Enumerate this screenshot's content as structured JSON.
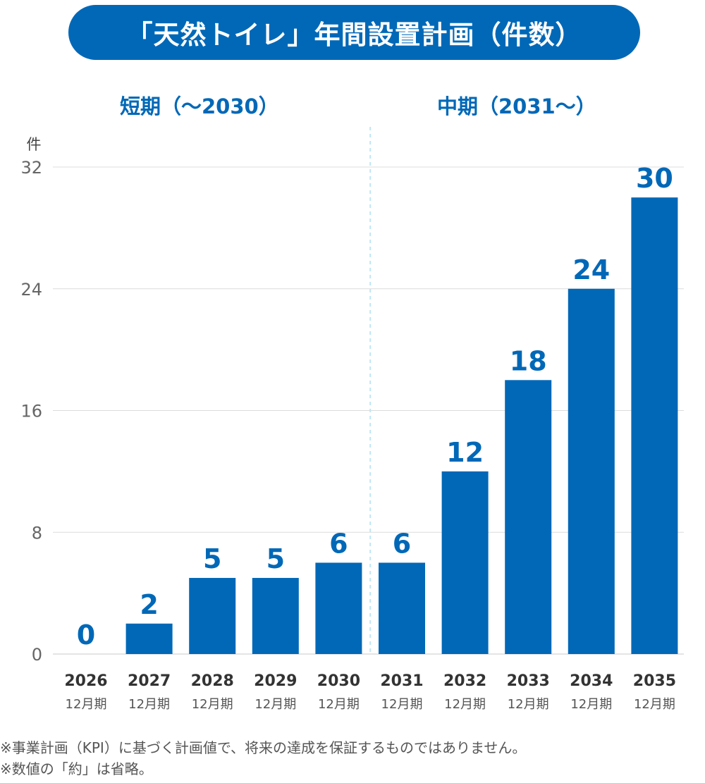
{
  "title": "「天然トイレ」年間設置計画（件数）",
  "periods": {
    "short": "短期（〜2030）",
    "mid": "中期（2031〜）"
  },
  "notes": [
    "※事業計画（KPI）に基づく計画値で、将来の達成を保証するものではありません。",
    "※数値の「約」は省略。"
  ],
  "colors": {
    "bar": "#0068b7",
    "label": "#0068b7",
    "grid": "#dcdcdc",
    "divider": "#bfe6f5",
    "axis_text": "#666666"
  },
  "chart_data": {
    "type": "bar",
    "categories": [
      "2026",
      "2027",
      "2028",
      "2029",
      "2030",
      "2031",
      "2032",
      "2033",
      "2034",
      "2035"
    ],
    "category_sublabel": "12月期",
    "values": [
      0,
      2,
      5,
      5,
      6,
      6,
      12,
      18,
      24,
      30
    ],
    "ylabel": "件",
    "ylim": [
      0,
      32
    ],
    "yticks": [
      0,
      8,
      16,
      24,
      32
    ],
    "grid": true
  }
}
